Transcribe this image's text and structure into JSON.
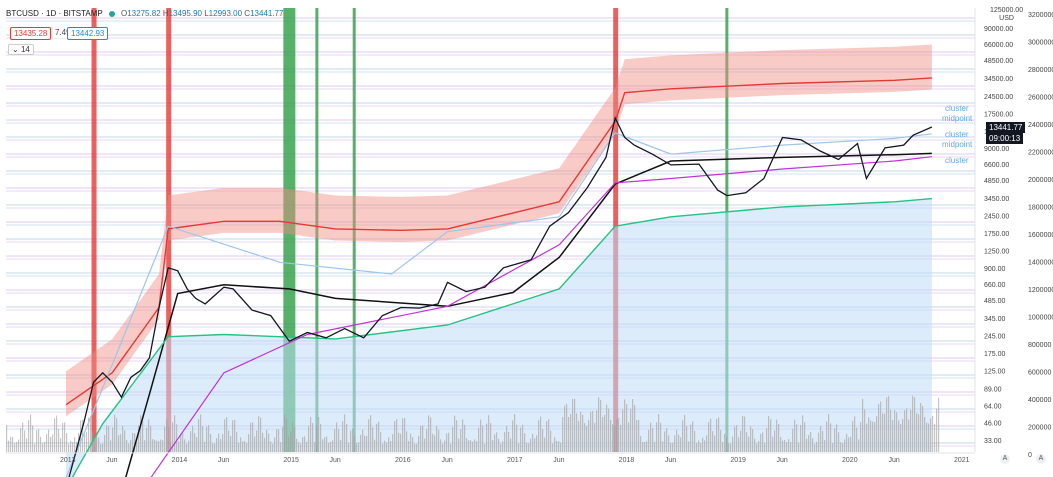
{
  "header": {
    "symbol": "BTCUSD · 1D · BITSTAMP",
    "o_label": "O",
    "o": "13275.82",
    "h_label": "H",
    "h": "13495.90",
    "l_label": "L",
    "l": "12993.00",
    "c_label": "C",
    "c": "13441.77",
    "bid": "13435.28",
    "spread": "7.49",
    "ask": "13442.93",
    "collapse_label": "14"
  },
  "price_axis": {
    "currency_top": "125000.00",
    "currency_unit": "USD",
    "current_price": "13441.77",
    "countdown": "09:00:13"
  },
  "cluster_labels": [
    "cluster",
    "midpoint",
    "cluster",
    "midpoint",
    "cluster"
  ],
  "buttons": {
    "log": "A",
    "auto": "A"
  },
  "colors": {
    "price": "#131722",
    "band": "#f28b82",
    "band_line": "#e53935",
    "fill_blue": "#bfdcf7",
    "long_ma": "#111111",
    "support": "#26c281",
    "magenta": "#c033d6",
    "vol": "#9e9e9e",
    "red_vline": "#e53935",
    "green_vline": "#2e9e44",
    "hgrid_purple": "#c9a0e8",
    "hgrid_blue": "#8fb8e0"
  },
  "chart_data": {
    "type": "line",
    "title": "BTCUSD · 1D · BITSTAMP",
    "price_scale": "log",
    "price_ticks": [
      "90000.00",
      "66000.00",
      "48500.00",
      "34500.00",
      "24500.00",
      "17500.00",
      "12500.00",
      "9000.00",
      "6600.00",
      "4850.00",
      "3450.00",
      "2450.00",
      "1750.00",
      "1250.00",
      "900.00",
      "660.00",
      "485.00",
      "345.00",
      "245.00",
      "175.00",
      "125.00",
      "89.00",
      "64.00",
      "46.00",
      "33.00"
    ],
    "volume_ticks": [
      "3200000",
      "3000000",
      "2800000",
      "2600000",
      "2400000",
      "2200000",
      "2000000",
      "1800000",
      "1600000",
      "1400000",
      "1200000",
      "1000000",
      "800000",
      "600000",
      "400000",
      "200000",
      "0"
    ],
    "time_ticks": [
      "2013",
      "Jun",
      "2014",
      "Jun",
      "2015",
      "Jun",
      "2016",
      "Jun",
      "2017",
      "Jun",
      "2018",
      "Jun",
      "2019",
      "Jun",
      "2020",
      "Jun",
      "2021"
    ],
    "series": [
      {
        "name": "BTCUSD",
        "points": [
          [
            "2013-01",
            13
          ],
          [
            "2013-03",
            47
          ],
          [
            "2013-04",
            100
          ],
          [
            "2013-05",
            120
          ],
          [
            "2013-06",
            100
          ],
          [
            "2013-07",
            75
          ],
          [
            "2013-08",
            110
          ],
          [
            "2013-09",
            125
          ],
          [
            "2013-10",
            160
          ],
          [
            "2013-11",
            420
          ],
          [
            "2013-12",
            900
          ],
          [
            "2014-01",
            850
          ],
          [
            "2014-02",
            600
          ],
          [
            "2014-03",
            500
          ],
          [
            "2014-04",
            450
          ],
          [
            "2014-06",
            620
          ],
          [
            "2014-07",
            600
          ],
          [
            "2014-09",
            400
          ],
          [
            "2014-11",
            360
          ],
          [
            "2015-01",
            220
          ],
          [
            "2015-03",
            260
          ],
          [
            "2015-05",
            235
          ],
          [
            "2015-07",
            280
          ],
          [
            "2015-09",
            235
          ],
          [
            "2015-11",
            360
          ],
          [
            "2016-01",
            420
          ],
          [
            "2016-03",
            415
          ],
          [
            "2016-05",
            450
          ],
          [
            "2016-06",
            680
          ],
          [
            "2016-08",
            570
          ],
          [
            "2016-10",
            620
          ],
          [
            "2016-12",
            900
          ],
          [
            "2017-01",
            950
          ],
          [
            "2017-03",
            1050
          ],
          [
            "2017-05",
            2000
          ],
          [
            "2017-07",
            2600
          ],
          [
            "2017-09",
            4200
          ],
          [
            "2017-11",
            7500
          ],
          [
            "2017-12",
            16000
          ],
          [
            "2018-01",
            11000
          ],
          [
            "2018-02",
            9500
          ],
          [
            "2018-04",
            8000
          ],
          [
            "2018-06",
            6500
          ],
          [
            "2018-09",
            6600
          ],
          [
            "2018-11",
            4000
          ],
          [
            "2018-12",
            3600
          ],
          [
            "2019-02",
            3800
          ],
          [
            "2019-04",
            5000
          ],
          [
            "2019-06",
            11000
          ],
          [
            "2019-08",
            10500
          ],
          [
            "2019-10",
            8500
          ],
          [
            "2019-12",
            7200
          ],
          [
            "2020-02",
            9800
          ],
          [
            "2020-03",
            5000
          ],
          [
            "2020-05",
            9000
          ],
          [
            "2020-07",
            9500
          ],
          [
            "2020-08",
            11500
          ],
          [
            "2020-10",
            13441.77
          ]
        ]
      },
      {
        "name": "",
        "points": [
          [
            "2013-01",
            16
          ],
          [
            "2013-06",
            140
          ],
          [
            "2013-12",
            2000
          ],
          [
            "2014-12",
            1000
          ],
          [
            "2015-12",
            800
          ],
          [
            "2016-06",
            1800
          ],
          [
            "2017-06",
            2400
          ],
          [
            "2017-12",
            12000
          ],
          [
            "2018-06",
            8000
          ],
          [
            "2019-06",
            9500
          ],
          [
            "2020-06",
            10800
          ],
          [
            "2020-10",
            11800
          ]
        ]
      },
      {
        "name": "",
        "points": [
          [
            "2013-01",
            65
          ],
          [
            "2013-06",
            120
          ],
          [
            "2013-11",
            420
          ],
          [
            "2013-12",
            1900
          ],
          [
            "2014-06",
            2200
          ],
          [
            "2014-12",
            2200
          ],
          [
            "2015-06",
            1900
          ],
          [
            "2016-01",
            1850
          ],
          [
            "2016-06",
            1900
          ],
          [
            "2017-06",
            3200
          ],
          [
            "2017-12",
            15000
          ],
          [
            "2018-01",
            26000
          ],
          [
            "2018-06",
            28000
          ],
          [
            "2019-06",
            31000
          ],
          [
            "2020-06",
            33000
          ],
          [
            "2020-10",
            34500
          ]
        ]
      },
      {
        "name": "",
        "points": [
          [
            "2013-01",
            13
          ],
          [
            "2013-05",
            45
          ],
          [
            "2013-12",
            240
          ],
          [
            "2014-06",
            250
          ],
          [
            "2015-06",
            230
          ],
          [
            "2016-06",
            300
          ],
          [
            "2017-06",
            600
          ],
          [
            "2017-12",
            2000
          ],
          [
            "2018-06",
            2400
          ],
          [
            "2019-06",
            2900
          ],
          [
            "2020-06",
            3200
          ],
          [
            "2020-10",
            3400
          ]
        ]
      },
      {
        "name": "",
        "points": [
          [
            "2013-07",
            12
          ],
          [
            "2013-10",
            80
          ],
          [
            "2014-01",
            550
          ],
          [
            "2014-06",
            650
          ],
          [
            "2015-01",
            600
          ],
          [
            "2015-06",
            500
          ],
          [
            "2016-06",
            430
          ],
          [
            "2017-01",
            560
          ],
          [
            "2017-06",
            1100
          ],
          [
            "2017-12",
            4500
          ],
          [
            "2018-06",
            7000
          ],
          [
            "2019-06",
            7500
          ],
          [
            "2020-06",
            7900
          ],
          [
            "2020-10",
            8100
          ]
        ]
      }
    ],
    "vlines_red": [
      "2013-04",
      "2013-12",
      "2017-12"
    ],
    "vlines_green": [
      "2015-01",
      "2015-04",
      "2015-08",
      "2018-12"
    ]
  }
}
